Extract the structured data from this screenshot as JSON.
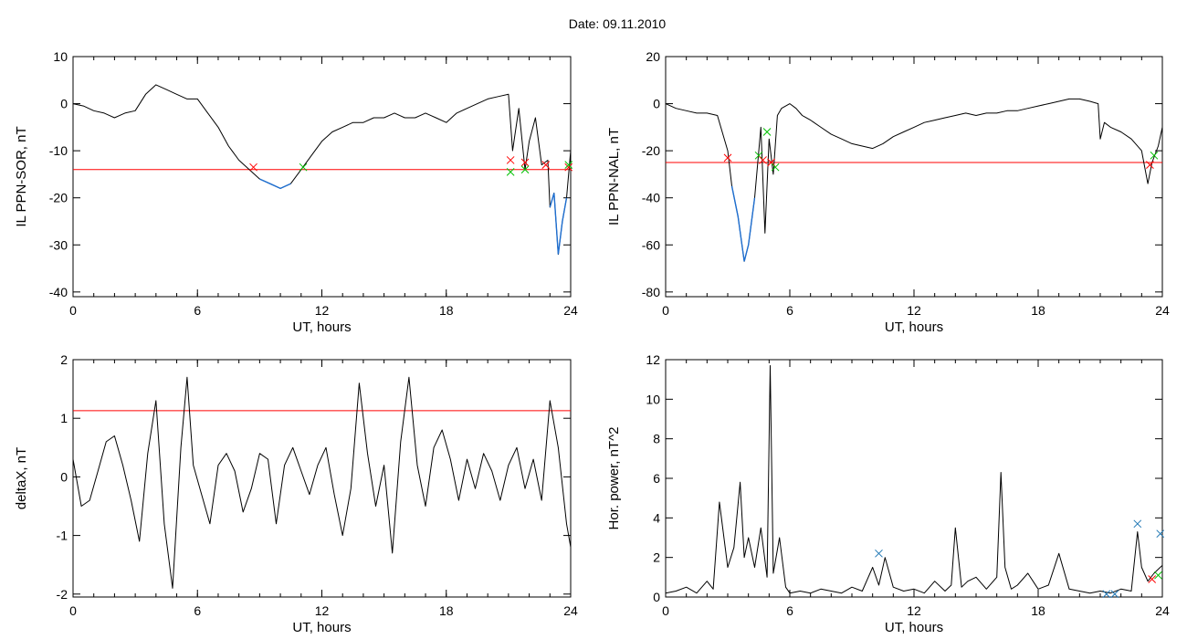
{
  "title": "Date:  09.11.2010",
  "chart_data": [
    {
      "type": "line",
      "ylabel": "IL PPN-SOR, nT",
      "xlabel": "UT, hours",
      "xlim": [
        0,
        24
      ],
      "ylim": [
        -41,
        10
      ],
      "xticks": [
        0,
        6,
        12,
        18,
        24
      ],
      "yticks": [
        -40,
        -30,
        -20,
        -10,
        0,
        10
      ],
      "threshold": -14,
      "series": [
        {
          "x": [
            0,
            0.5,
            1,
            1.5,
            2,
            2.5,
            3,
            3.5,
            4,
            4.5,
            5,
            5.5,
            6,
            6.5,
            7,
            7.5,
            8,
            8.5,
            9,
            9.5,
            10,
            10.5,
            11,
            11.5,
            12,
            12.5,
            13,
            13.5,
            14,
            14.5,
            15,
            15.5,
            16,
            16.5,
            17,
            17.5,
            18,
            18.5,
            19,
            19.5,
            20,
            20.5,
            21,
            21.2,
            21.5,
            21.8,
            22,
            22.3,
            22.6,
            22.9,
            23,
            23.2,
            23.4,
            23.6,
            23.8,
            24
          ],
          "y": [
            0,
            -0.5,
            -1.5,
            -2,
            -3,
            -2,
            -1.5,
            2,
            4,
            3,
            2,
            1,
            1,
            -2,
            -5,
            -9,
            -12,
            -14,
            -16,
            -17,
            -18,
            -17,
            -14,
            -11,
            -8,
            -6,
            -5,
            -4,
            -4,
            -3,
            -3,
            -2,
            -3,
            -3,
            -2,
            -3,
            -4,
            -2,
            -1,
            0,
            1,
            1.5,
            2,
            -10,
            -1,
            -14,
            -8,
            -3,
            -13,
            -12,
            -22,
            -19,
            -32,
            -25,
            -20,
            -10
          ],
          "color": "#000000"
        }
      ],
      "markers": [
        {
          "x": 8.7,
          "y": -13.5,
          "color": "#ff0000"
        },
        {
          "x": 11.1,
          "y": -13.5,
          "color": "#00c000"
        },
        {
          "x": 21.1,
          "y": -12,
          "color": "#ff0000"
        },
        {
          "x": 21.1,
          "y": -14.5,
          "color": "#00c000"
        },
        {
          "x": 21.8,
          "y": -12.5,
          "color": "#ff0000"
        },
        {
          "x": 21.8,
          "y": -14,
          "color": "#00c000"
        },
        {
          "x": 22.8,
          "y": -13,
          "color": "#ff0000"
        },
        {
          "x": 23.9,
          "y": -13.5,
          "color": "#ff0000"
        },
        {
          "x": 23.9,
          "y": -13,
          "color": "#00c000"
        }
      ]
    },
    {
      "type": "line",
      "ylabel": "IL PPN-NAL, nT",
      "xlabel": "UT, hours",
      "xlim": [
        0,
        24
      ],
      "ylim": [
        -82,
        20
      ],
      "xticks": [
        0,
        6,
        12,
        18,
        24
      ],
      "yticks": [
        -80,
        -60,
        -40,
        -20,
        0,
        20
      ],
      "threshold": -25,
      "series": [
        {
          "x": [
            0,
            0.5,
            1,
            1.5,
            2,
            2.5,
            3,
            3.2,
            3.5,
            3.8,
            4,
            4.3,
            4.6,
            4.8,
            5,
            5.2,
            5.4,
            5.6,
            6,
            6.3,
            6.6,
            7,
            7.5,
            8,
            8.5,
            9,
            9.5,
            10,
            10.5,
            11,
            11.5,
            12,
            12.5,
            13,
            13.5,
            14,
            14.5,
            15,
            15.5,
            16,
            16.5,
            17,
            17.5,
            18,
            18.5,
            19,
            19.5,
            20,
            20.5,
            20.9,
            21,
            21.2,
            21.5,
            22,
            22.5,
            23,
            23.3,
            23.5,
            23.8,
            24
          ],
          "y": [
            0,
            -2,
            -3,
            -4,
            -4,
            -5,
            -20,
            -35,
            -48,
            -67,
            -60,
            -40,
            -10,
            -55,
            -15,
            -30,
            -5,
            -2,
            0,
            -2,
            -5,
            -7,
            -10,
            -13,
            -15,
            -17,
            -18,
            -19,
            -17,
            -14,
            -12,
            -10,
            -8,
            -7,
            -6,
            -5,
            -4,
            -5,
            -4,
            -4,
            -3,
            -3,
            -2,
            -1,
            0,
            1,
            2,
            2,
            1,
            0,
            -15,
            -8,
            -10,
            -12,
            -15,
            -20,
            -34,
            -25,
            -18,
            -10
          ],
          "color": "#000000"
        }
      ],
      "markers": [
        {
          "x": 3.0,
          "y": -23,
          "color": "#ff0000"
        },
        {
          "x": 4.5,
          "y": -22,
          "color": "#00c000"
        },
        {
          "x": 4.7,
          "y": -24,
          "color": "#ff0000"
        },
        {
          "x": 4.9,
          "y": -12,
          "color": "#00c000"
        },
        {
          "x": 5.1,
          "y": -25,
          "color": "#ff0000"
        },
        {
          "x": 5.3,
          "y": -27,
          "color": "#00c000"
        },
        {
          "x": 23.4,
          "y": -26,
          "color": "#ff0000"
        },
        {
          "x": 23.6,
          "y": -22,
          "color": "#00c000"
        }
      ]
    },
    {
      "type": "line",
      "ylabel": "deltaX, nT",
      "xlabel": "UT, hours",
      "xlim": [
        0,
        24
      ],
      "ylim": [
        -2.05,
        2
      ],
      "xticks": [
        0,
        6,
        12,
        18,
        24
      ],
      "yticks": [
        -2,
        -1,
        0,
        1,
        2
      ],
      "threshold": 1.13,
      "series": [
        {
          "x": [
            0,
            0.4,
            0.8,
            1.2,
            1.6,
            2,
            2.4,
            2.8,
            3.2,
            3.6,
            4,
            4.4,
            4.8,
            5.2,
            5.5,
            5.8,
            6.2,
            6.6,
            7,
            7.4,
            7.8,
            8.2,
            8.6,
            9,
            9.4,
            9.8,
            10.2,
            10.6,
            11,
            11.4,
            11.8,
            12.2,
            12.6,
            13,
            13.4,
            13.8,
            14.2,
            14.6,
            15,
            15.4,
            15.8,
            16.2,
            16.6,
            17,
            17.4,
            17.8,
            18.2,
            18.6,
            19,
            19.4,
            19.8,
            20.2,
            20.6,
            21,
            21.4,
            21.8,
            22.2,
            22.6,
            23,
            23.4,
            23.8,
            24
          ],
          "y": [
            0.3,
            -0.5,
            -0.4,
            0.1,
            0.6,
            0.7,
            0.2,
            -0.4,
            -1.1,
            0.4,
            1.3,
            -0.8,
            -1.9,
            0.5,
            1.7,
            0.2,
            -0.3,
            -0.8,
            0.2,
            0.4,
            0.1,
            -0.6,
            -0.2,
            0.4,
            0.3,
            -0.8,
            0.2,
            0.5,
            0.1,
            -0.3,
            0.2,
            0.5,
            -0.3,
            -1.0,
            -0.2,
            1.6,
            0.4,
            -0.5,
            0.2,
            -1.3,
            0.6,
            1.7,
            0.2,
            -0.5,
            0.5,
            0.8,
            0.3,
            -0.4,
            0.3,
            -0.2,
            0.4,
            0.1,
            -0.4,
            0.2,
            0.5,
            -0.2,
            0.3,
            -0.4,
            1.3,
            0.5,
            -0.8,
            -1.2
          ],
          "color": "#000000"
        }
      ]
    },
    {
      "type": "line",
      "ylabel": "Hor. power, nT^2",
      "xlabel": "UT, hours",
      "xlim": [
        0,
        24
      ],
      "ylim": [
        0,
        12
      ],
      "xticks": [
        0,
        6,
        12,
        18,
        24
      ],
      "yticks": [
        0,
        2,
        4,
        6,
        8,
        10,
        12
      ],
      "series": [
        {
          "x": [
            0,
            0.5,
            1,
            1.5,
            2,
            2.3,
            2.6,
            3,
            3.3,
            3.6,
            3.8,
            4,
            4.3,
            4.6,
            4.9,
            5.05,
            5.2,
            5.5,
            5.8,
            6,
            6.5,
            7,
            7.5,
            8,
            8.5,
            9,
            9.5,
            10,
            10.3,
            10.6,
            11,
            11.5,
            12,
            12.5,
            13,
            13.5,
            13.8,
            14,
            14.3,
            14.6,
            15,
            15.5,
            16,
            16.2,
            16.4,
            16.7,
            17,
            17.5,
            18,
            18.5,
            19,
            19.5,
            20,
            20.5,
            21,
            21.5,
            22,
            22.5,
            22.8,
            23,
            23.3,
            23.6,
            24
          ],
          "y": [
            0.2,
            0.3,
            0.5,
            0.2,
            0.8,
            0.4,
            4.8,
            1.5,
            2.5,
            5.8,
            2.0,
            3.0,
            1.5,
            3.5,
            1.0,
            11.7,
            1.2,
            3.0,
            0.5,
            0.2,
            0.3,
            0.2,
            0.4,
            0.3,
            0.2,
            0.5,
            0.3,
            1.5,
            0.6,
            2.0,
            0.5,
            0.3,
            0.4,
            0.2,
            0.8,
            0.3,
            0.6,
            3.5,
            0.5,
            0.8,
            1.0,
            0.4,
            1.0,
            6.3,
            1.5,
            0.4,
            0.6,
            1.2,
            0.4,
            0.6,
            2.2,
            0.4,
            0.3,
            0.2,
            0.3,
            0.2,
            0.4,
            0.3,
            3.3,
            1.5,
            0.8,
            1.2,
            1.6
          ],
          "color": "#000000"
        }
      ],
      "markers": [
        {
          "x": 10.3,
          "y": 2.2,
          "color": "#1f77b4"
        },
        {
          "x": 21.3,
          "y": 0.15,
          "color": "#1f77b4"
        },
        {
          "x": 21.7,
          "y": 0.15,
          "color": "#1f77b4"
        },
        {
          "x": 22.8,
          "y": 3.7,
          "color": "#1f77b4"
        },
        {
          "x": 23.9,
          "y": 3.2,
          "color": "#1f77b4"
        },
        {
          "x": 23.5,
          "y": 0.9,
          "color": "#ff0000"
        },
        {
          "x": 23.8,
          "y": 1.1,
          "color": "#00c000"
        }
      ]
    }
  ]
}
